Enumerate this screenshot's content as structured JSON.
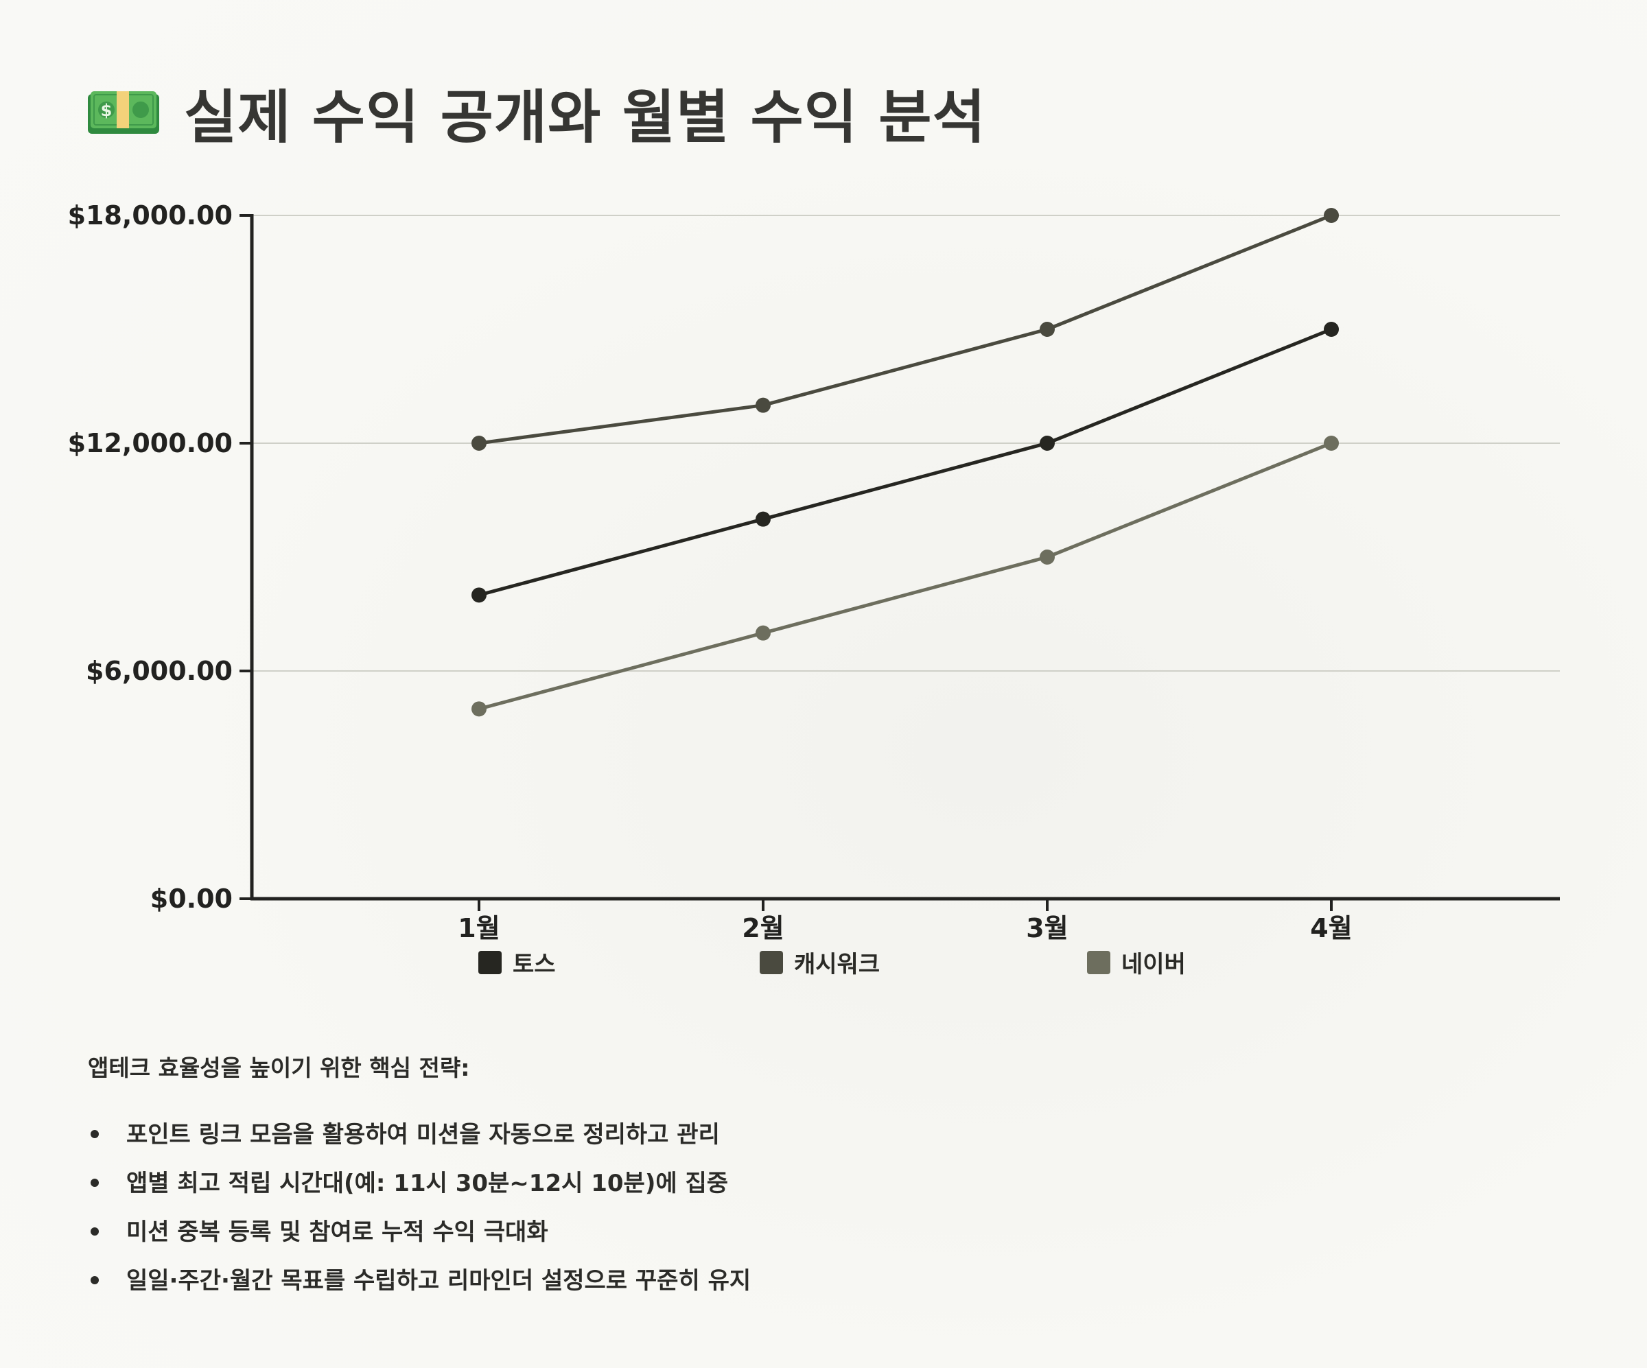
{
  "header": {
    "title": "실제 수익 공개와 월별 수익 분석",
    "icon": "money-bill-icon"
  },
  "chart_data": {
    "type": "line",
    "title": "",
    "xlabel": "",
    "ylabel": "",
    "categories": [
      "1월",
      "2월",
      "3월",
      "4월"
    ],
    "yticks": [
      "$0.00",
      "$6,000.00",
      "$12,000.00",
      "$18,000.00"
    ],
    "ylim": [
      0,
      18000
    ],
    "grid": true,
    "legend_position": "bottom",
    "series": [
      {
        "name": "토스",
        "values": [
          8000,
          10000,
          12000,
          15000
        ],
        "color": "#262621"
      },
      {
        "name": "캐시워크",
        "values": [
          12000,
          13000,
          15000,
          18000
        ],
        "color": "#4a4a3f"
      },
      {
        "name": "네이버",
        "values": [
          5000,
          7000,
          9000,
          12000
        ],
        "color": "#6d6e5e"
      }
    ]
  },
  "notes": {
    "heading": "앱테크 효율성을 높이기 위한 핵심 전략:",
    "items": [
      "포인트 링크 모음을 활용하여 미션을 자동으로 정리하고 관리",
      "앱별 최고 적립 시간대(예: 11시 30분~12시 10분)에 집중",
      "미션 중복 등록 및 참여로 누적 수익 극대화",
      "일일·주간·월간 목표를 수립하고 리마인더 설정으로 꾸준히 유지"
    ]
  }
}
